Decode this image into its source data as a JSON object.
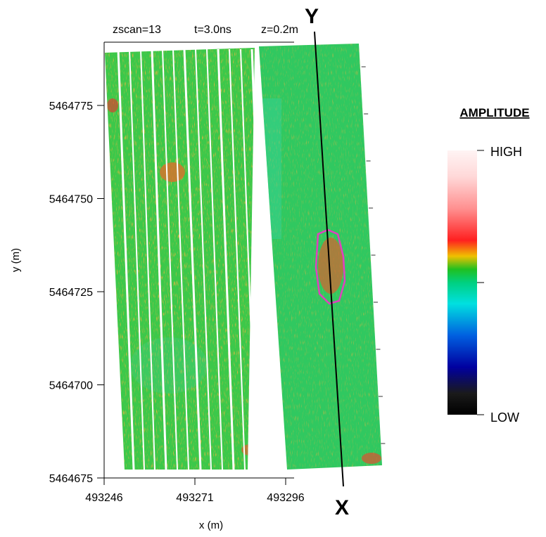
{
  "chart_data": {
    "type": "heatmap",
    "header": [
      "zscan=13",
      "t=3.0ns",
      "z=0.2m"
    ],
    "xlabel": "x (m)",
    "ylabel": "y (m)",
    "xlim": [
      493246,
      493298
    ],
    "ylim": [
      5464675,
      5464790
    ],
    "x_ticks": [
      493246,
      493271,
      493296
    ],
    "y_ticks": [
      5464775,
      5464750,
      5464725,
      5464700,
      5464675
    ],
    "x_tick_labels": [
      "493246",
      "493271",
      "493296"
    ],
    "y_tick_labels": [
      "5464775",
      "5464750",
      "5464725",
      "5464700",
      "5464675"
    ],
    "profile_line": {
      "start_label": "Y",
      "end_label": "X"
    },
    "anomaly_outline_color": "#e040c0",
    "colorbar": {
      "title": "AMPLITUDE",
      "high_label": "HIGH",
      "low_label": "LOW",
      "colors": [
        "#000000",
        "#1a1a1a",
        "#0000a0",
        "#0060e0",
        "#00e0e0",
        "#00d080",
        "#20c020",
        "#f0c000",
        "#ff2020",
        "#ff9090",
        "#ffd8d8",
        "#fff4f4"
      ]
    },
    "grid": false,
    "legend": "colorbar right"
  }
}
